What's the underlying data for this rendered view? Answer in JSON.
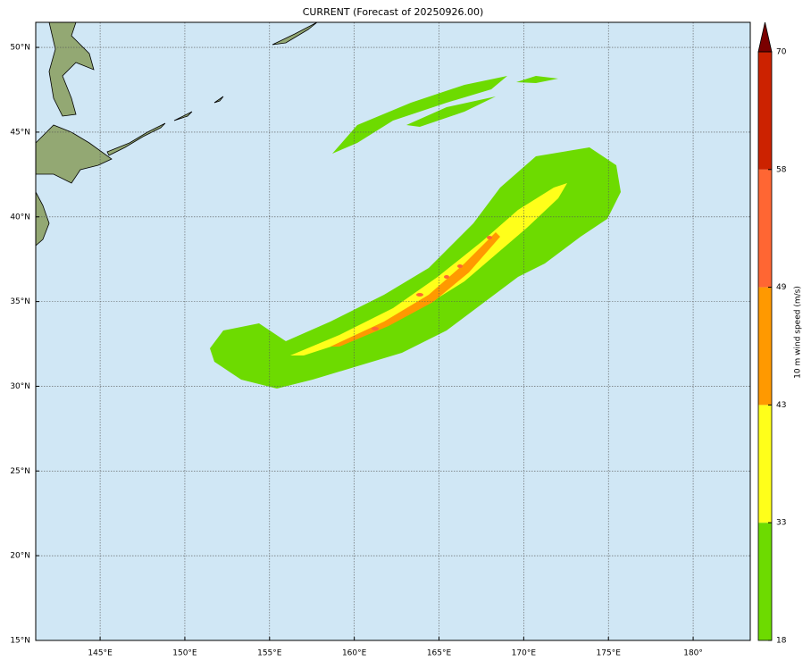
{
  "map": {
    "title": "CURRENT (Forecast of 20250926.00)",
    "lon_range": [
      141.2,
      183.37
    ],
    "lat_range": [
      15,
      51.48
    ],
    "lon_ticks": [
      {
        "value": 145,
        "label": "145°E"
      },
      {
        "value": 150,
        "label": "150°E"
      },
      {
        "value": 155,
        "label": "155°E"
      },
      {
        "value": 160,
        "label": "160°E"
      },
      {
        "value": 165,
        "label": "165°E"
      },
      {
        "value": 170,
        "label": "170°E"
      },
      {
        "value": 175,
        "label": "175°E"
      },
      {
        "value": 180,
        "label": "180°"
      }
    ],
    "lat_ticks": [
      {
        "value": 15,
        "label": "15°N"
      },
      {
        "value": 20,
        "label": "20°N"
      },
      {
        "value": 25,
        "label": "25°N"
      },
      {
        "value": 30,
        "label": "30°N"
      },
      {
        "value": 35,
        "label": "35°N"
      },
      {
        "value": 40,
        "label": "40°N"
      },
      {
        "value": 45,
        "label": "45°N"
      },
      {
        "value": 50,
        "label": "50°N"
      }
    ],
    "grid": true,
    "colorbar": {
      "label": "10 m wind speed (m/s)",
      "levels": [
        18,
        33,
        43,
        49,
        58,
        70
      ],
      "colors": [
        "#6ddb00",
        "#ffff1a",
        "#ff9900",
        "#ff6633",
        "#cc2200"
      ],
      "extend_color": "#7a0000"
    }
  }
}
